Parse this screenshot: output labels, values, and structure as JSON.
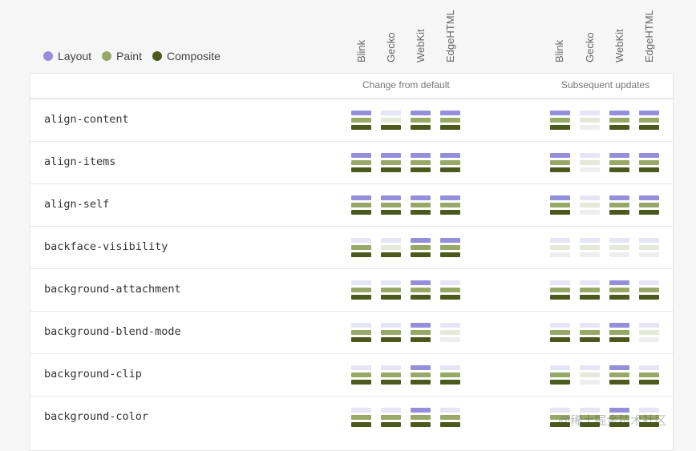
{
  "legend": [
    {
      "label": "Layout",
      "color": "#958fdb"
    },
    {
      "label": "Paint",
      "color": "#98a866"
    },
    {
      "label": "Composite",
      "color": "#4b5a1c"
    }
  ],
  "inactive_colors": {
    "layout": "#e6e5f6",
    "paint": "#e4e9d9",
    "composite": "#eeeeee"
  },
  "engines": [
    "Blink",
    "Gecko",
    "WebKit",
    "EdgeHTML"
  ],
  "groups": [
    {
      "title": "Change from default"
    },
    {
      "title": "Subsequent updates"
    }
  ],
  "properties": [
    {
      "name": "align-content",
      "default": [
        [
          1,
          1,
          1
        ],
        [
          0,
          0,
          1
        ],
        [
          1,
          1,
          1
        ],
        [
          1,
          1,
          1
        ]
      ],
      "subsequent": [
        [
          1,
          1,
          1
        ],
        [
          0,
          0,
          0
        ],
        [
          1,
          1,
          1
        ],
        [
          1,
          1,
          1
        ]
      ]
    },
    {
      "name": "align-items",
      "default": [
        [
          1,
          1,
          1
        ],
        [
          1,
          1,
          1
        ],
        [
          1,
          1,
          1
        ],
        [
          1,
          1,
          1
        ]
      ],
      "subsequent": [
        [
          1,
          1,
          1
        ],
        [
          0,
          0,
          0
        ],
        [
          1,
          1,
          1
        ],
        [
          1,
          1,
          1
        ]
      ]
    },
    {
      "name": "align-self",
      "default": [
        [
          1,
          1,
          1
        ],
        [
          1,
          1,
          1
        ],
        [
          1,
          1,
          1
        ],
        [
          1,
          1,
          1
        ]
      ],
      "subsequent": [
        [
          1,
          1,
          1
        ],
        [
          0,
          0,
          0
        ],
        [
          1,
          1,
          1
        ],
        [
          1,
          1,
          1
        ]
      ]
    },
    {
      "name": "backface-visibility",
      "default": [
        [
          0,
          1,
          1
        ],
        [
          0,
          0,
          1
        ],
        [
          1,
          1,
          1
        ],
        [
          1,
          1,
          1
        ]
      ],
      "subsequent": [
        [
          0,
          0,
          0
        ],
        [
          0,
          0,
          0
        ],
        [
          0,
          0,
          0
        ],
        [
          0,
          0,
          0
        ]
      ]
    },
    {
      "name": "background-attachment",
      "default": [
        [
          0,
          1,
          1
        ],
        [
          0,
          1,
          1
        ],
        [
          1,
          1,
          1
        ],
        [
          0,
          1,
          1
        ]
      ],
      "subsequent": [
        [
          0,
          1,
          1
        ],
        [
          0,
          1,
          1
        ],
        [
          1,
          1,
          1
        ],
        [
          0,
          1,
          1
        ]
      ]
    },
    {
      "name": "background-blend-mode",
      "default": [
        [
          0,
          1,
          1
        ],
        [
          0,
          1,
          1
        ],
        [
          1,
          1,
          1
        ],
        [
          0,
          0,
          0
        ]
      ],
      "subsequent": [
        [
          0,
          1,
          1
        ],
        [
          0,
          1,
          1
        ],
        [
          1,
          1,
          1
        ],
        [
          0,
          0,
          0
        ]
      ]
    },
    {
      "name": "background-clip",
      "default": [
        [
          0,
          1,
          1
        ],
        [
          0,
          1,
          1
        ],
        [
          1,
          1,
          1
        ],
        [
          0,
          1,
          1
        ]
      ],
      "subsequent": [
        [
          0,
          1,
          1
        ],
        [
          0,
          0,
          0
        ],
        [
          1,
          1,
          1
        ],
        [
          0,
          1,
          1
        ]
      ]
    },
    {
      "name": "background-color",
      "default": [
        [
          0,
          1,
          1
        ],
        [
          0,
          1,
          1
        ],
        [
          1,
          1,
          1
        ],
        [
          0,
          1,
          1
        ]
      ],
      "subsequent": [
        [
          0,
          1,
          1
        ],
        [
          0,
          1,
          1
        ],
        [
          1,
          1,
          1
        ],
        [
          0,
          1,
          1
        ]
      ]
    }
  ],
  "watermark": "@稀土掘金技术社区"
}
